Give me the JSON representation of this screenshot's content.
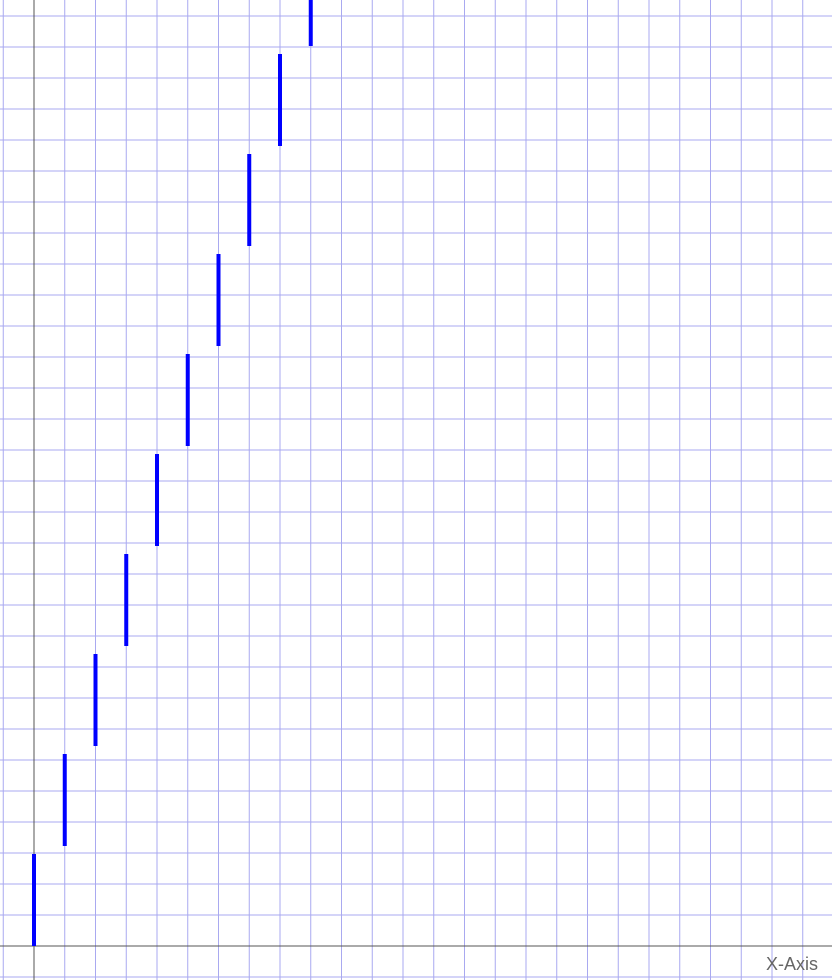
{
  "chart_data": {
    "type": "line",
    "plot_kind": "step-function",
    "xlabel": "X-Axis",
    "ylabel": "",
    "title": "",
    "grid": true,
    "x_grid_step": 0.5,
    "y_grid_step": 0.5,
    "xlim": [
      -1,
      26
    ],
    "ylim": [
      -1,
      30.5
    ],
    "series": [
      {
        "segments": [
          {
            "x": 0.0,
            "y": [
              0,
              3
            ]
          },
          {
            "x": 0.5,
            "y": [
              3,
              6
            ]
          },
          {
            "x": 1.0,
            "y": [
              6,
              9
            ]
          },
          {
            "x": 1.5,
            "y": [
              9,
              12
            ]
          },
          {
            "x": 2.0,
            "y": [
              12,
              15
            ]
          },
          {
            "x": 2.5,
            "y": [
              15,
              18
            ]
          },
          {
            "x": 3.0,
            "y": [
              18,
              21
            ]
          },
          {
            "x": 3.5,
            "y": [
              21,
              24
            ]
          },
          {
            "x": 4.0,
            "y": [
              24,
              27
            ]
          },
          {
            "x": 4.5,
            "y": [
              27,
              30
            ]
          }
        ]
      }
    ]
  },
  "colors": {
    "grid": "#a9a9f0",
    "axis": "#555555",
    "series": "#0000ff",
    "label": "#666666",
    "background": "#ffffff"
  }
}
